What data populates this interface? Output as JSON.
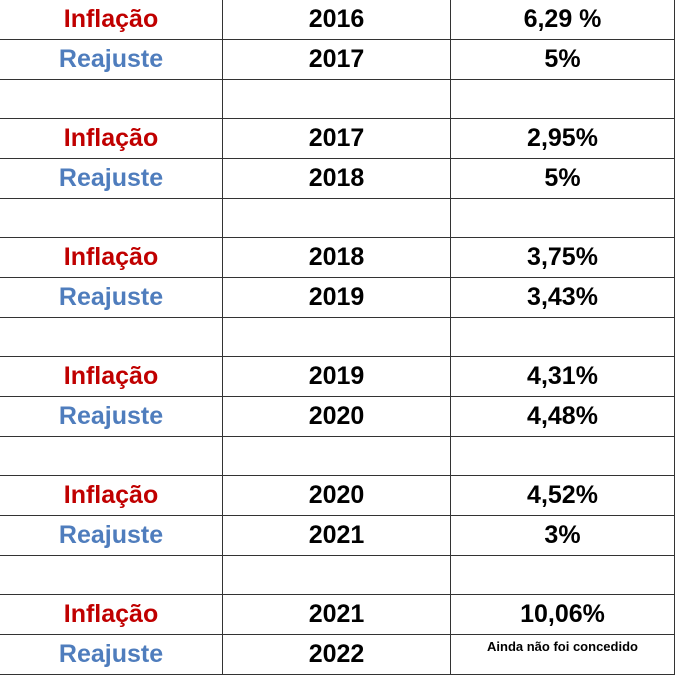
{
  "rows": [
    {
      "type": "data",
      "kind": "inflacao",
      "label": "Inflação",
      "year": "2016",
      "value": "6,29 %"
    },
    {
      "type": "data",
      "kind": "reajuste",
      "label": "Reajuste",
      "year": "2017",
      "value": "5%"
    },
    {
      "type": "spacer"
    },
    {
      "type": "data",
      "kind": "inflacao",
      "label": "Inflação",
      "year": "2017",
      "value": "2,95%"
    },
    {
      "type": "data",
      "kind": "reajuste",
      "label": "Reajuste",
      "year": "2018",
      "value": "5%"
    },
    {
      "type": "spacer"
    },
    {
      "type": "data",
      "kind": "inflacao",
      "label": "Inflação",
      "year": "2018",
      "value": "3,75%"
    },
    {
      "type": "data",
      "kind": "reajuste",
      "label": "Reajuste",
      "year": "2019",
      "value": "3,43%"
    },
    {
      "type": "spacer"
    },
    {
      "type": "data",
      "kind": "inflacao",
      "label": "Inflação",
      "year": "2019",
      "value": "4,31%"
    },
    {
      "type": "data",
      "kind": "reajuste",
      "label": "Reajuste",
      "year": "2020",
      "value": "4,48%"
    },
    {
      "type": "spacer"
    },
    {
      "type": "data",
      "kind": "inflacao",
      "label": "Inflação",
      "year": "2020",
      "value": "4,52%"
    },
    {
      "type": "data",
      "kind": "reajuste",
      "label": "Reajuste",
      "year": "2021",
      "value": "3%"
    },
    {
      "type": "spacer"
    },
    {
      "type": "data",
      "kind": "inflacao",
      "label": "Inflação",
      "year": "2021",
      "value": "10,06%"
    },
    {
      "type": "data",
      "kind": "reajuste",
      "label": "Reajuste",
      "year": "2022",
      "value": "Ainda não foi concedido",
      "note": true
    }
  ],
  "colors": {
    "inflacao": "#c00000",
    "reajuste": "#4f7dbd"
  }
}
